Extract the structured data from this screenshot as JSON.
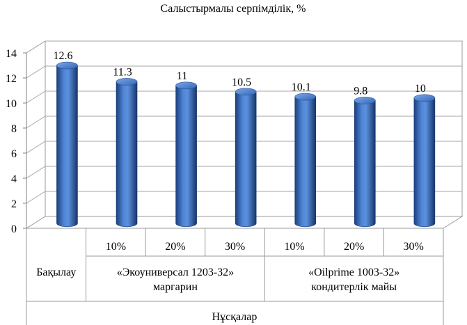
{
  "chart_data": {
    "type": "bar",
    "title": "Салыстырмалы серпімділік, %",
    "categories": [
      "Бақылау",
      "10%",
      "20%",
      "30%",
      "10%",
      "20%",
      "30%"
    ],
    "values": [
      12.6,
      11.3,
      11,
      10.5,
      10.1,
      9.8,
      10
    ],
    "data_labels": [
      "12.6",
      "11.3",
      "11",
      "10.5",
      "10.1",
      "9.8",
      "10"
    ],
    "groups": [
      {
        "label_lines": [
          "«Экоуниверсал 1203-32»",
          "маргарин"
        ],
        "members": [
          1,
          2,
          3
        ]
      },
      {
        "label_lines": [
          "«Oilprime 1003-32»",
          "кондитерлік майы"
        ],
        "members": [
          4,
          5,
          6
        ]
      }
    ],
    "xlabel": "Нұсқалар",
    "ylabel": "",
    "ylim": [
      0,
      14
    ],
    "yticks": [
      0,
      2,
      4,
      6,
      8,
      10,
      12,
      14
    ],
    "grid": true,
    "legend": "none",
    "bar_color": "#3b6fc4"
  }
}
